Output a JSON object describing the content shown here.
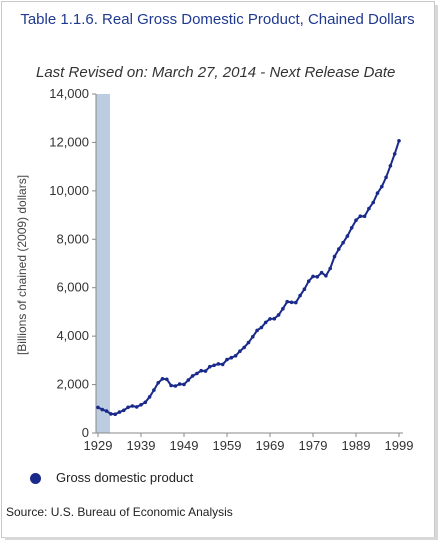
{
  "chart_data": {
    "type": "line",
    "title": "Table 1.1.6. Real Gross Domestic Product, Chained Dollars",
    "subtitle": "Last Revised on: March 27, 2014 - Next Release Date",
    "ylabel": "[Billions of chained (2009) dollars]",
    "ylim": [
      0,
      14000
    ],
    "xlim": [
      1929,
      1999
    ],
    "yticks": [
      "0",
      "2,000",
      "4,000",
      "6,000",
      "8,000",
      "10,000",
      "12,000",
      "14,000"
    ],
    "xticks": [
      "1929",
      "1939",
      "1949",
      "1959",
      "1969",
      "1979",
      "1989",
      "1999"
    ],
    "series": [
      {
        "name": "Gross domestic product",
        "color": "#1a2a8a",
        "x": [
          1929,
          1930,
          1931,
          1932,
          1933,
          1934,
          1935,
          1936,
          1937,
          1938,
          1939,
          1940,
          1941,
          1942,
          1943,
          1944,
          1945,
          1946,
          1947,
          1948,
          1949,
          1950,
          1951,
          1952,
          1953,
          1954,
          1955,
          1956,
          1957,
          1958,
          1959,
          1960,
          1961,
          1962,
          1963,
          1964,
          1965,
          1966,
          1967,
          1968,
          1969,
          1970,
          1971,
          1972,
          1973,
          1974,
          1975,
          1976,
          1977,
          1978,
          1979,
          1980,
          1981,
          1982,
          1983,
          1984,
          1985,
          1986,
          1987,
          1988,
          1989,
          1990,
          1991,
          1992,
          1993,
          1994,
          1995,
          1996,
          1997,
          1998,
          1999
        ],
        "values": [
          1057,
          965,
          903,
          790,
          778,
          862,
          939,
          1060,
          1114,
          1078,
          1163,
          1266,
          1490,
          1772,
          2073,
          2239,
          2218,
          1961,
          1940,
          2020,
          2008,
          2184,
          2360,
          2457,
          2571,
          2557,
          2739,
          2794,
          2854,
          2833,
          3033,
          3109,
          3188,
          3378,
          3534,
          3734,
          3977,
          4239,
          4355,
          4569,
          4712,
          4722,
          4877,
          5134,
          5424,
          5396,
          5385,
          5675,
          5937,
          6267,
          6466,
          6450,
          6618,
          6491,
          6792,
          7285,
          7594,
          7861,
          8133,
          8475,
          8787,
          8955,
          8948,
          9267,
          9521,
          9906,
          10175,
          10561,
          11035,
          11526,
          12066
        ]
      }
    ],
    "legend_position": "bottom-left",
    "grid": false
  },
  "legend": {
    "label": "Gross domestic product"
  },
  "source": "Source: U.S. Bureau of Economic Analysis",
  "colors": {
    "title": "#1f3a8f",
    "line": "#1a2a8a",
    "band": "#bccde2"
  }
}
